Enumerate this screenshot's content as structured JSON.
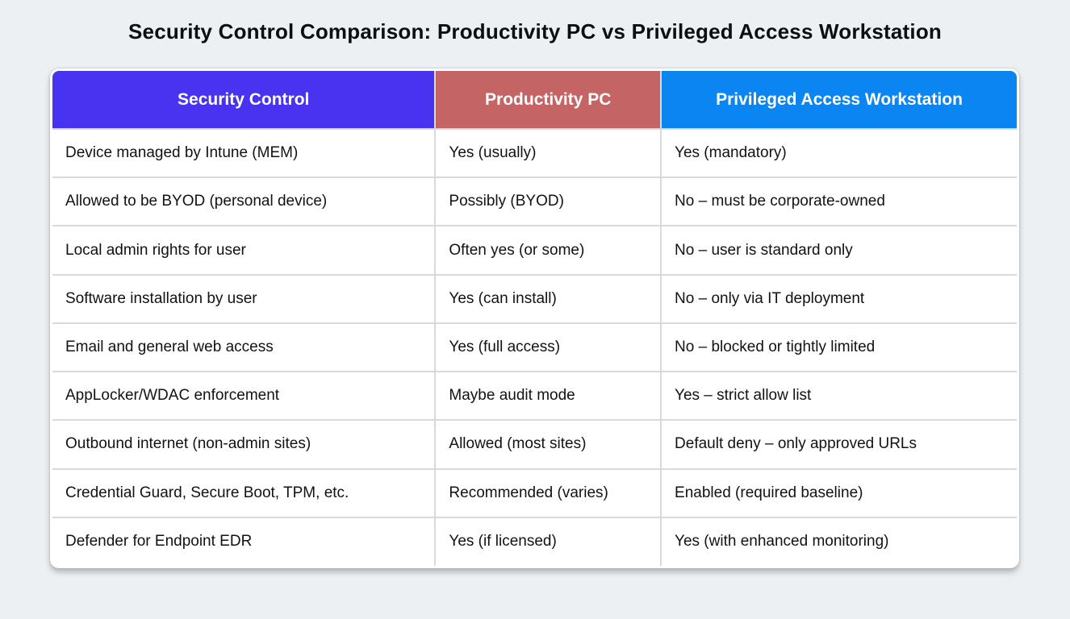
{
  "page": {
    "background": "#ECF0F3",
    "title": "Security Control Comparison: Productivity PC vs Privileged Access Workstation"
  },
  "chart_data": {
    "type": "table",
    "title": "Security Control Comparison: Productivity PC vs Privileged Access Workstation",
    "legend_position": "none",
    "grid_color": "#D9D9D9",
    "header_text_color": "#FFFFFF",
    "columns": [
      {
        "label": "Security Control",
        "header_color": "#4733F0"
      },
      {
        "label": "Productivity PC",
        "header_color": "#C46465"
      },
      {
        "label": "Privileged Access Workstation",
        "header_color": "#0A85F1"
      }
    ],
    "rows": [
      [
        "Device managed by Intune (MEM)",
        "Yes (usually)",
        "Yes (mandatory)"
      ],
      [
        "Allowed to be BYOD (personal device)",
        "Possibly (BYOD)",
        "No – must be corporate-owned"
      ],
      [
        "Local admin rights for user",
        "Often yes (or some)",
        "No – user is standard only"
      ],
      [
        "Software installation by user",
        "Yes (can install)",
        "No – only via IT deployment"
      ],
      [
        "Email and general web access",
        "Yes (full access)",
        "No – blocked or tightly limited"
      ],
      [
        "AppLocker/WDAC enforcement",
        "Maybe audit mode",
        "Yes – strict allow list"
      ],
      [
        "Outbound internet (non-admin sites)",
        "Allowed (most sites)",
        "Default deny – only approved URLs"
      ],
      [
        "Credential Guard, Secure Boot, TPM, etc.",
        "Recommended (varies)",
        "Enabled (required baseline)"
      ],
      [
        "Defender for Endpoint EDR",
        "Yes (if licensed)",
        "Yes (with enhanced monitoring)"
      ]
    ]
  }
}
